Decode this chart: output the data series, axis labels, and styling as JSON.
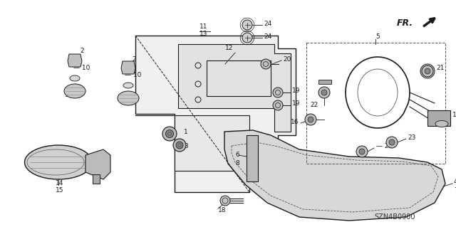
{
  "background_color": "#ffffff",
  "line_color": "#1a1a1a",
  "diagram_code": "SZN4B0900",
  "fig_w": 6.4,
  "fig_h": 3.19,
  "dpi": 100
}
